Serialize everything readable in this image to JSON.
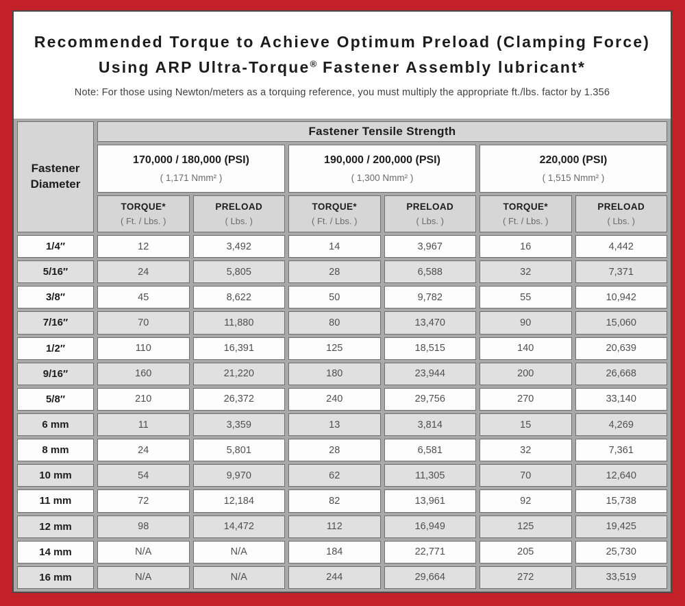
{
  "colors": {
    "frame_red": "#c32129",
    "inner_border": "#4a4a4a",
    "grid_gap": "#a9a9a9",
    "header_gray": "#d6d6d6",
    "alt_row_gray": "#e0e0e0"
  },
  "title": {
    "line1": "Recommended Torque to Achieve Optimum Preload (Clamping Force)",
    "line2_pre": "Using ARP Ultra-Torque",
    "line2_sup": "®",
    "line2_post": " Fastener Assembly lubricant*"
  },
  "note": "Note: For those using Newton/meters as a torquing reference, you must multiply the appropriate ft./lbs. factor by 1.356",
  "table": {
    "corner_label_line1": "Fastener",
    "corner_label_line2": "Diameter",
    "strength_header": "Fastener Tensile Strength",
    "groups": [
      {
        "psi": "170,000 / 180,000 (PSI)",
        "nmm": "( 1,171 Nmm² )"
      },
      {
        "psi": "190,000 / 200,000 (PSI)",
        "nmm": "( 1,300 Nmm² )"
      },
      {
        "psi": "220,000 (PSI)",
        "nmm": "( 1,515 Nmm² )"
      }
    ],
    "subheaders": {
      "torque_label": "TORQUE*",
      "torque_unit": "( Ft. / Lbs. )",
      "preload_label": "PRELOAD",
      "preload_unit": "( Lbs. )"
    },
    "rows": [
      {
        "diameter": "1/4″",
        "values": [
          "12",
          "3,492",
          "14",
          "3,967",
          "16",
          "4,442"
        ]
      },
      {
        "diameter": "5/16″",
        "values": [
          "24",
          "5,805",
          "28",
          "6,588",
          "32",
          "7,371"
        ]
      },
      {
        "diameter": "3/8″",
        "values": [
          "45",
          "8,622",
          "50",
          "9,782",
          "55",
          "10,942"
        ]
      },
      {
        "diameter": "7/16″",
        "values": [
          "70",
          "11,880",
          "80",
          "13,470",
          "90",
          "15,060"
        ]
      },
      {
        "diameter": "1/2″",
        "values": [
          "110",
          "16,391",
          "125",
          "18,515",
          "140",
          "20,639"
        ]
      },
      {
        "diameter": "9/16″",
        "values": [
          "160",
          "21,220",
          "180",
          "23,944",
          "200",
          "26,668"
        ]
      },
      {
        "diameter": "5/8″",
        "values": [
          "210",
          "26,372",
          "240",
          "29,756",
          "270",
          "33,140"
        ]
      },
      {
        "diameter": "6 mm",
        "values": [
          "11",
          "3,359",
          "13",
          "3,814",
          "15",
          "4,269"
        ]
      },
      {
        "diameter": "8 mm",
        "values": [
          "24",
          "5,801",
          "28",
          "6,581",
          "32",
          "7,361"
        ]
      },
      {
        "diameter": "10 mm",
        "values": [
          "54",
          "9,970",
          "62",
          "11,305",
          "70",
          "12,640"
        ]
      },
      {
        "diameter": "11 mm",
        "values": [
          "72",
          "12,184",
          "82",
          "13,961",
          "92",
          "15,738"
        ]
      },
      {
        "diameter": "12 mm",
        "values": [
          "98",
          "14,472",
          "112",
          "16,949",
          "125",
          "19,425"
        ]
      },
      {
        "diameter": "14 mm",
        "values": [
          "N/A",
          "N/A",
          "184",
          "22,771",
          "205",
          "25,730"
        ]
      },
      {
        "diameter": "16 mm",
        "values": [
          "N/A",
          "N/A",
          "244",
          "29,664",
          "272",
          "33,519"
        ]
      }
    ]
  }
}
